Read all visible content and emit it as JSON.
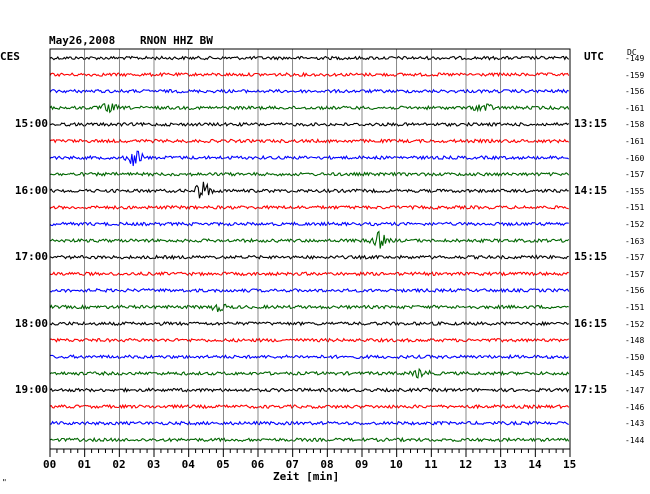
{
  "header": {
    "date": "May26,2008",
    "station": "RNON HHZ BW"
  },
  "tz_left": "CES",
  "tz_right": "UTC",
  "dc_label": "DC",
  "x_axis_label": "Zeit [min]",
  "corner_mark": "\"",
  "chart_data": {
    "type": "line",
    "title": "May26,2008 RNON HHZ BW",
    "xlabel": "Zeit [min]",
    "x_range": [
      0,
      15
    ],
    "x_ticks": [
      "00",
      "01",
      "02",
      "03",
      "04",
      "05",
      "06",
      "07",
      "08",
      "09",
      "10",
      "11",
      "12",
      "13",
      "14",
      "15"
    ],
    "grid": true,
    "colors": [
      "#000000",
      "#ff0000",
      "#0000ff",
      "#006600"
    ],
    "trace_count": 24,
    "left_time_labels": [
      {
        "trace": 4,
        "label": "15:00"
      },
      {
        "trace": 8,
        "label": "16:00"
      },
      {
        "trace": 12,
        "label": "17:00"
      },
      {
        "trace": 16,
        "label": "18:00"
      },
      {
        "trace": 20,
        "label": "19:00"
      }
    ],
    "right_time_labels": [
      {
        "trace": 4,
        "label": "13:15"
      },
      {
        "trace": 8,
        "label": "14:15"
      },
      {
        "trace": 12,
        "label": "15:15"
      },
      {
        "trace": 16,
        "label": "16:15"
      },
      {
        "trace": 20,
        "label": "17:15"
      }
    ],
    "dc_offsets": [
      "-149",
      "-159",
      "-156",
      "-161",
      "-158",
      "-161",
      "-160",
      "-157",
      "-155",
      "-151",
      "-152",
      "-163",
      "-157",
      "-157",
      "-156",
      "-151",
      "-152",
      "-148",
      "-150",
      "-145",
      "-147",
      "-146",
      "-143",
      "-144"
    ],
    "events": [
      {
        "trace": 3,
        "minute": 1.7,
        "amplitude": 0.3
      },
      {
        "trace": 3,
        "minute": 12.5,
        "amplitude": 0.35
      },
      {
        "trace": 6,
        "minute": 2.45,
        "amplitude": 0.6
      },
      {
        "trace": 8,
        "minute": 4.4,
        "amplitude": 0.7
      },
      {
        "trace": 11,
        "minute": 9.5,
        "amplitude": 0.55
      },
      {
        "trace": 15,
        "minute": 4.85,
        "amplitude": 0.25
      },
      {
        "trace": 19,
        "minute": 10.7,
        "amplitude": 0.3
      }
    ]
  }
}
